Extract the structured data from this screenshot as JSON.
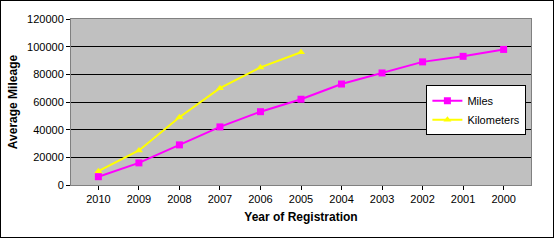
{
  "chart_data": {
    "type": "line",
    "x_label": "Year of Registration",
    "y_label": "Average Mileage",
    "categories": [
      "2010",
      "2009",
      "2008",
      "2007",
      "2006",
      "2005",
      "2004",
      "2003",
      "2002",
      "2001",
      "2000"
    ],
    "series": [
      {
        "name": "Miles",
        "color": "#ff00ff",
        "marker": "square",
        "line_style": "solid",
        "values": [
          6000,
          16000,
          29000,
          42000,
          53000,
          62000,
          73000,
          81000,
          89000,
          93000,
          98000
        ]
      },
      {
        "name": "Kilometers",
        "color": "#ffff00",
        "marker": "triangle-up",
        "line_style": "solid",
        "values": [
          10000,
          25000,
          49000,
          70000,
          85000,
          96000,
          null,
          null,
          null,
          null,
          null
        ]
      }
    ],
    "ylim": [
      0,
      120000
    ],
    "yticks": [
      0,
      20000,
      40000,
      60000,
      80000,
      100000,
      120000
    ],
    "grid": true,
    "legend": "right"
  }
}
